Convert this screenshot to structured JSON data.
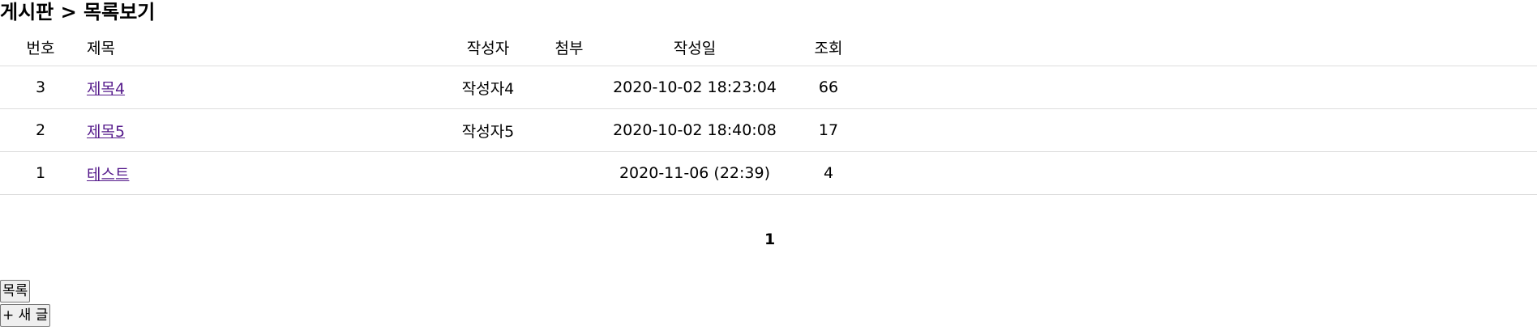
{
  "page_title": "게시판 > 목록보기",
  "table": {
    "headers": {
      "num": "번호",
      "title": "제목",
      "writer": "작성자",
      "attach": "첨부",
      "date": "작성일",
      "views": "조회"
    },
    "rows": [
      {
        "num": "3",
        "title": "제목4",
        "writer": "작성자4",
        "attach": "",
        "date": "2020-10-02 18:23:04",
        "views": "66"
      },
      {
        "num": "2",
        "title": "제목5",
        "writer": "작성자5",
        "attach": "",
        "date": "2020-10-02 18:40:08",
        "views": "17"
      },
      {
        "num": "1",
        "title": "테스트",
        "writer": "",
        "attach": "",
        "date": "2020-11-06 (22:39)",
        "views": "4"
      }
    ]
  },
  "pagination": {
    "current_page": "1"
  },
  "buttons": {
    "list_label": "목록",
    "new_post_label": "+ 새 글"
  }
}
